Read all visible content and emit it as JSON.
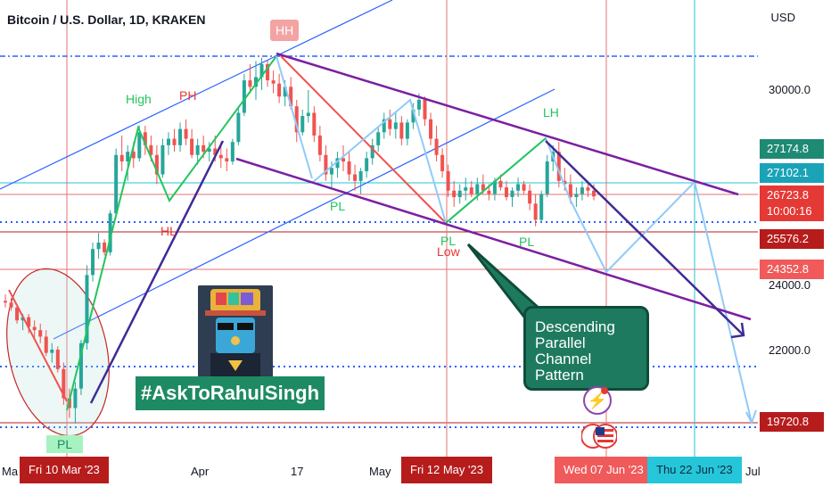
{
  "chart_data": {
    "type": "candlestick",
    "title": "Bitcoin / U.S. Dollar, 1D, KRAKEN",
    "currency": "USD",
    "y_ticks": [
      "30000.0",
      "24000.0",
      "22000.0"
    ],
    "price_tags": [
      {
        "value": "27174.8",
        "color": "#1e8a73"
      },
      {
        "value": "27102.1",
        "color": "#1aa3b7"
      },
      {
        "value": "26723.8",
        "color": "#e53935",
        "sub": "10:00:16"
      },
      {
        "value": "25576.2",
        "color": "#b71c1c"
      },
      {
        "value": "24352.8",
        "color": "#f05a5a"
      },
      {
        "value": "19720.8",
        "color": "#b71c1c"
      }
    ],
    "x_labels": [
      "Ma",
      "Apr",
      "17",
      "May",
      "Jul"
    ],
    "x_tags": [
      {
        "label": "Fri 10 Mar '23",
        "color": "#b71c1c"
      },
      {
        "label": "Fri 12 May '23",
        "color": "#b71c1c"
      },
      {
        "label": "Wed 07 Jun '23",
        "color": "#f05a5a"
      },
      {
        "label": "Thu 22 Jun '23",
        "color": "#26c6da"
      }
    ],
    "annotations": {
      "hh": "HH",
      "high": "High",
      "ph": "PH",
      "hl": "HL",
      "pl_mid": "PL",
      "pl_may": "PL",
      "low": "Low",
      "pl_right": "PL",
      "lh": "LH",
      "pl_bottom": "PL"
    },
    "callout": [
      "Descending",
      "Parallel",
      "Channel Pattern"
    ],
    "brand": "#AskToRahulSingh",
    "candles": [
      [
        23500,
        23700,
        23300,
        23450
      ],
      [
        23450,
        23600,
        23200,
        23300
      ],
      [
        23300,
        23400,
        22800,
        22900
      ],
      [
        22900,
        23100,
        22600,
        23000
      ],
      [
        23000,
        23100,
        22500,
        22700
      ],
      [
        22700,
        22900,
        22300,
        22600
      ],
      [
        22600,
        22800,
        22200,
        22400
      ],
      [
        22400,
        22600,
        21800,
        21900
      ],
      [
        21900,
        22200,
        21600,
        22000
      ],
      [
        22000,
        22100,
        21300,
        21400
      ],
      [
        21400,
        21600,
        20300,
        20500
      ],
      [
        20500,
        20800,
        19900,
        20200
      ],
      [
        20200,
        21000,
        19720,
        20800
      ],
      [
        20800,
        22300,
        20600,
        22200
      ],
      [
        22200,
        24600,
        22000,
        24300
      ],
      [
        24300,
        25300,
        24100,
        25100
      ],
      [
        25100,
        25600,
        24800,
        25300
      ],
      [
        25300,
        25400,
        24900,
        25000
      ],
      [
        25000,
        26300,
        24900,
        26200
      ],
      [
        26200,
        28200,
        26100,
        28000
      ],
      [
        28000,
        28600,
        27500,
        27800
      ],
      [
        27800,
        28300,
        27200,
        28100
      ],
      [
        28100,
        28400,
        27600,
        27900
      ],
      [
        27900,
        28900,
        27800,
        28700
      ],
      [
        28700,
        28900,
        28000,
        28300
      ],
      [
        28300,
        28600,
        27800,
        28000
      ],
      [
        28000,
        28300,
        27100,
        27400
      ],
      [
        27400,
        28500,
        27300,
        28300
      ],
      [
        28300,
        28700,
        28000,
        28500
      ],
      [
        28500,
        28800,
        28100,
        28300
      ],
      [
        28300,
        29000,
        28100,
        28800
      ],
      [
        28800,
        29100,
        28300,
        28500
      ],
      [
        28500,
        28800,
        27900,
        28000
      ],
      [
        28000,
        28500,
        27700,
        28300
      ],
      [
        28300,
        28600,
        27900,
        28100
      ],
      [
        28100,
        28400,
        27800,
        28200
      ],
      [
        28200,
        28600,
        27800,
        28000
      ],
      [
        28000,
        28400,
        27600,
        27900
      ],
      [
        27900,
        28200,
        27500,
        27800
      ],
      [
        27800,
        28500,
        27700,
        28400
      ],
      [
        28400,
        29500,
        28300,
        29300
      ],
      [
        29300,
        30500,
        29200,
        30300
      ],
      [
        30300,
        30800,
        29900,
        30100
      ],
      [
        30100,
        30900,
        29700,
        30400
      ],
      [
        30400,
        31000,
        30000,
        30800
      ],
      [
        30800,
        30900,
        30100,
        30300
      ],
      [
        30300,
        30600,
        29900,
        30200
      ],
      [
        30200,
        30500,
        29600,
        29800
      ],
      [
        29800,
        30300,
        29500,
        30100
      ],
      [
        30100,
        30400,
        29400,
        29500
      ],
      [
        29500,
        29700,
        28400,
        28700
      ],
      [
        28700,
        29400,
        28600,
        29200
      ],
      [
        29200,
        30000,
        29000,
        29300
      ],
      [
        29300,
        29500,
        28400,
        28600
      ],
      [
        28600,
        28900,
        27800,
        28000
      ],
      [
        28000,
        28300,
        27200,
        27400
      ],
      [
        27400,
        27800,
        27000,
        27600
      ],
      [
        27600,
        28100,
        27300,
        27900
      ],
      [
        27900,
        28300,
        27500,
        27800
      ],
      [
        27800,
        28100,
        27200,
        27400
      ],
      [
        27400,
        27700,
        26900,
        27200
      ],
      [
        27200,
        27600,
        26800,
        27500
      ],
      [
        27500,
        28100,
        27300,
        27900
      ],
      [
        27900,
        28500,
        27700,
        28300
      ],
      [
        28300,
        28900,
        28100,
        28700
      ],
      [
        28700,
        29300,
        28500,
        29100
      ],
      [
        29100,
        29400,
        28600,
        28800
      ],
      [
        28800,
        29300,
        28500,
        29000
      ],
      [
        29000,
        29200,
        28300,
        28500
      ],
      [
        28500,
        29100,
        28300,
        29000
      ],
      [
        29000,
        29600,
        28800,
        29400
      ],
      [
        29400,
        29900,
        29200,
        29700
      ],
      [
        29700,
        29800,
        28900,
        29100
      ],
      [
        29100,
        29300,
        28300,
        28500
      ],
      [
        28500,
        28900,
        27800,
        28000
      ],
      [
        28000,
        28200,
        27300,
        27500
      ],
      [
        27500,
        27700,
        26700,
        26900
      ],
      [
        26900,
        27200,
        26400,
        26700
      ],
      [
        26700,
        27100,
        26500,
        26900
      ],
      [
        26900,
        27300,
        26600,
        27000
      ],
      [
        27000,
        27200,
        26700,
        26800
      ],
      [
        26800,
        27300,
        26600,
        27100
      ],
      [
        27100,
        27400,
        26800,
        26900
      ],
      [
        26900,
        27100,
        26600,
        26800
      ],
      [
        26800,
        27300,
        26600,
        27200
      ],
      [
        27200,
        27400,
        26900,
        27000
      ],
      [
        27000,
        27200,
        26600,
        26700
      ],
      [
        26700,
        27000,
        26400,
        26900
      ],
      [
        26900,
        27300,
        26700,
        27100
      ],
      [
        27100,
        27200,
        26800,
        26900
      ],
      [
        26900,
        27100,
        26300,
        26500
      ],
      [
        26500,
        26800,
        25800,
        26000
      ],
      [
        26000,
        26900,
        25900,
        26800
      ],
      [
        26800,
        28000,
        26700,
        27800
      ],
      [
        27800,
        28300,
        27500,
        28100
      ],
      [
        28100,
        28400,
        27000,
        27200
      ],
      [
        27200,
        27600,
        26900,
        27100
      ],
      [
        27100,
        27400,
        26500,
        26700
      ],
      [
        26700,
        27000,
        26400,
        26800
      ],
      [
        26800,
        27200,
        26600,
        27000
      ],
      [
        27000,
        27200,
        26700,
        26900
      ],
      [
        26900,
        27100,
        26600,
        26723
      ]
    ]
  }
}
